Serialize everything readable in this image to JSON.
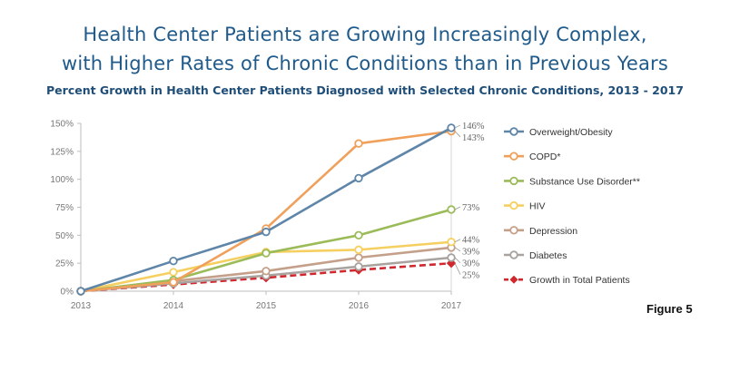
{
  "title_line1": "Health Center Patients are Growing Increasingly Complex,",
  "title_line2": "with Higher Rates of Chronic Conditions than in Previous Years",
  "subtitle": "Percent Growth in Health Center Patients Diagnosed with Selected Chronic Conditions, 2013 - 2017",
  "figure_label": "Figure 5",
  "chart_data": {
    "type": "line",
    "x": [
      "2013",
      "2014",
      "2015",
      "2016",
      "2017"
    ],
    "ylim": [
      0,
      150
    ],
    "yticks": [
      0,
      25,
      50,
      75,
      100,
      125,
      150
    ],
    "ytick_labels": [
      "0%",
      "25%",
      "50%",
      "75%",
      "100%",
      "125%",
      "150%"
    ],
    "grid": false,
    "legend_position": "right",
    "series": [
      {
        "name": "Overweight/Obesity",
        "color": "#5f86a8",
        "dashed": false,
        "marker": "circle",
        "values": [
          0,
          27,
          53,
          101,
          146
        ],
        "end_label": "146%"
      },
      {
        "name": "COPD*",
        "color": "#f0a05a",
        "dashed": false,
        "marker": "circle",
        "values": [
          0,
          8,
          56,
          132,
          143
        ],
        "end_label": "143%"
      },
      {
        "name": "Substance Use Disorder**",
        "color": "#9bbb59",
        "dashed": false,
        "marker": "circle",
        "values": [
          0,
          10,
          34,
          50,
          73
        ],
        "end_label": "73%"
      },
      {
        "name": "HIV",
        "color": "#f5d060",
        "dashed": false,
        "marker": "circle",
        "values": [
          0,
          17,
          35,
          37,
          44
        ],
        "end_label": "44%"
      },
      {
        "name": "Depression",
        "color": "#c4a08a",
        "dashed": false,
        "marker": "circle",
        "values": [
          0,
          9,
          18,
          30,
          39
        ],
        "end_label": "39%"
      },
      {
        "name": "Diabetes",
        "color": "#a9a3a0",
        "dashed": false,
        "marker": "circle",
        "values": [
          0,
          7,
          14,
          22,
          30
        ],
        "end_label": "30%"
      },
      {
        "name": "Growth in Total Patients",
        "color": "#d0282e",
        "dashed": true,
        "marker": "diamond",
        "values": [
          0,
          6,
          12,
          19,
          25
        ],
        "end_label": "25%"
      }
    ]
  }
}
